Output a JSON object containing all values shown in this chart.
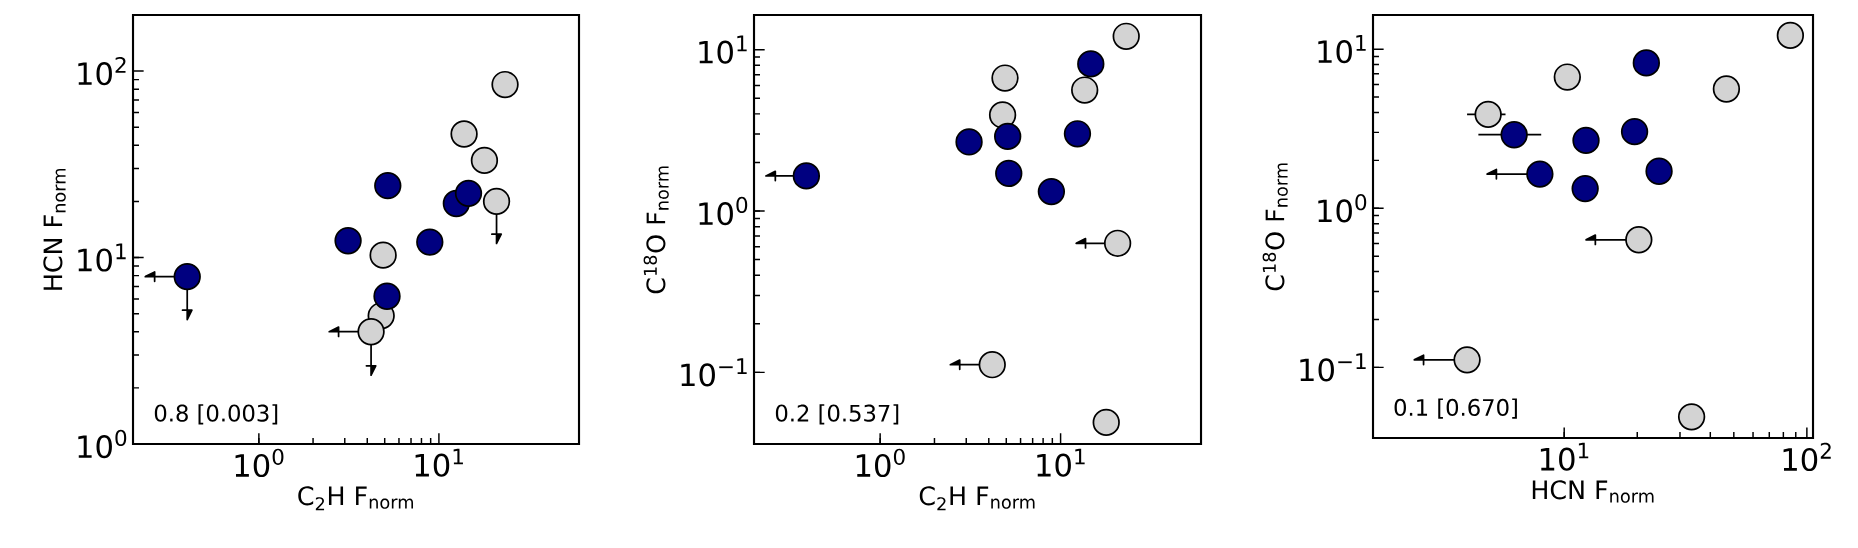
{
  "chart_data": [
    {
      "type": "scatter",
      "xlabel": "C$_{2}$H F$_{norm}$",
      "ylabel": "HCN F$_{norm}$",
      "log": "xy",
      "marker": "circle",
      "xlim": [
        0.2,
        60
      ],
      "ylim": [
        1,
        200
      ],
      "xticks": [
        {
          "value": 1,
          "label": "10$^{0}$"
        },
        {
          "value": 10,
          "label": "10$^{1}$"
        }
      ],
      "yticks": [
        {
          "value": 1,
          "label": "10$^{0}$"
        },
        {
          "value": 10,
          "label": "10$^{1}$"
        },
        {
          "value": 100,
          "label": "10$^{2}$"
        }
      ],
      "annotations": [
        "0.8 [0.003]"
      ],
      "series": [
        {
          "color": "#d3d3d3",
          "x": [
            23.3,
            13.8,
            17.9,
            20.9,
            4.9,
            4.78,
            4.2
          ],
          "values": [
            84.7,
            46,
            33.2,
            20.0,
            10.3,
            4.87,
            4.0
          ],
          "errors": [
            null,
            null,
            null,
            [
              11.9,
              20.0
            ],
            null,
            null,
            [
              2.34,
              4.0
            ]
          ],
          "xerrors": [
            null,
            null,
            null,
            null,
            null,
            null,
            [
              2.46,
              4.2
            ]
          ]
        },
        {
          "color": "#000080",
          "x": [
            0.4,
            3.13,
            5.2,
            5.15,
            8.9,
            12.5,
            14.6
          ],
          "values": [
            7.9,
            12.3,
            24.3,
            6.2,
            12.1,
            19.5,
            22.1
          ],
          "errors": [
            [
              4.65,
              7.9
            ],
            null,
            null,
            null,
            null,
            null,
            null
          ],
          "xerrors": [
            [
              0.234,
              0.4
            ],
            null,
            null,
            null,
            null,
            null,
            null
          ]
        }
      ]
    },
    {
      "type": "scatter",
      "xlabel": "C$_{2}$H F$_{norm}$",
      "ylabel": "C$^{18}$O F$_{norm}$",
      "log": "xy",
      "marker": "circle",
      "xlim": [
        0.2,
        60
      ],
      "ylim": [
        0.036,
        16.4
      ],
      "xticks": [
        {
          "value": 1,
          "label": "10$^{0}$"
        },
        {
          "value": 10,
          "label": "10$^{1}$"
        }
      ],
      "yticks": [
        {
          "value": 0.1,
          "label": "10$^{−1}$"
        },
        {
          "value": 1,
          "label": "10$^{0}$"
        },
        {
          "value": 10,
          "label": "10$^{1}$"
        }
      ],
      "annotations": [
        "0.2 [0.537]"
      ],
      "series": [
        {
          "color": "#d3d3d3",
          "x": [
            23.1,
            4.92,
            13.6,
            4.77,
            20.7,
            4.18,
            17.9
          ],
          "values": [
            12.1,
            6.67,
            5.62,
            3.94,
            0.631,
            0.1116,
            0.049
          ],
          "xerrors": [
            null,
            null,
            null,
            null,
            [
              12.2,
              20.7
            ],
            [
              2.45,
              4.18
            ],
            null
          ]
        },
        {
          "color": "#000080",
          "x": [
            0.39,
            3.11,
            5.09,
            5.16,
            8.89,
            12.4,
            14.7
          ],
          "values": [
            1.65,
            2.68,
            2.9,
            1.71,
            1.32,
            3.01,
            8.16
          ],
          "xerrors": [
            [
              0.233,
              0.39
            ],
            null,
            null,
            null,
            null,
            null,
            null
          ]
        }
      ]
    },
    {
      "type": "scatter",
      "xlabel": "HCN F$_{norm}$",
      "ylabel": "C$^{18}$O F$_{norm}$",
      "log": "xy",
      "marker": "circle",
      "xlim": [
        1.63,
        106
      ],
      "ylim": [
        0.036,
        16.4
      ],
      "xticks": [
        {
          "value": 10,
          "label": "10$^{1}$"
        },
        {
          "value": 100,
          "label": "10$^{2}$"
        }
      ],
      "yticks": [
        {
          "value": 0.1,
          "label": "10$^{−1}$"
        },
        {
          "value": 1,
          "label": "10$^{0}$"
        },
        {
          "value": 10,
          "label": "10$^{1}$"
        }
      ],
      "annotations": [
        "0.1 [0.670]"
      ],
      "series": [
        {
          "color": "#d3d3d3",
          "x": [
            85.5,
            10.3,
            46.6,
            4.86,
            20.3,
            3.98,
            33.5
          ],
          "values": [
            12.2,
            6.68,
            5.62,
            3.89,
            0.634,
            0.1115,
            0.0489
          ],
          "xerrors": [
            null,
            null,
            null,
            [
              3.98,
              5.73
            ],
            [
              12.3,
              20.3
            ],
            [
              2.41,
              3.98
            ],
            null
          ]
        },
        {
          "color": "#000080",
          "x": [
            21.8,
            6.22,
            12.3,
            19.5,
            7.94,
            12.2,
            24.6
          ],
          "values": [
            8.2,
            2.9,
            2.67,
            3.03,
            1.64,
            1.33,
            1.71
          ],
          "xerrors": [
            null,
            [
              4.43,
              8.04
            ],
            null,
            null,
            [
              4.81,
              7.94
            ],
            null,
            null
          ]
        }
      ]
    }
  ]
}
